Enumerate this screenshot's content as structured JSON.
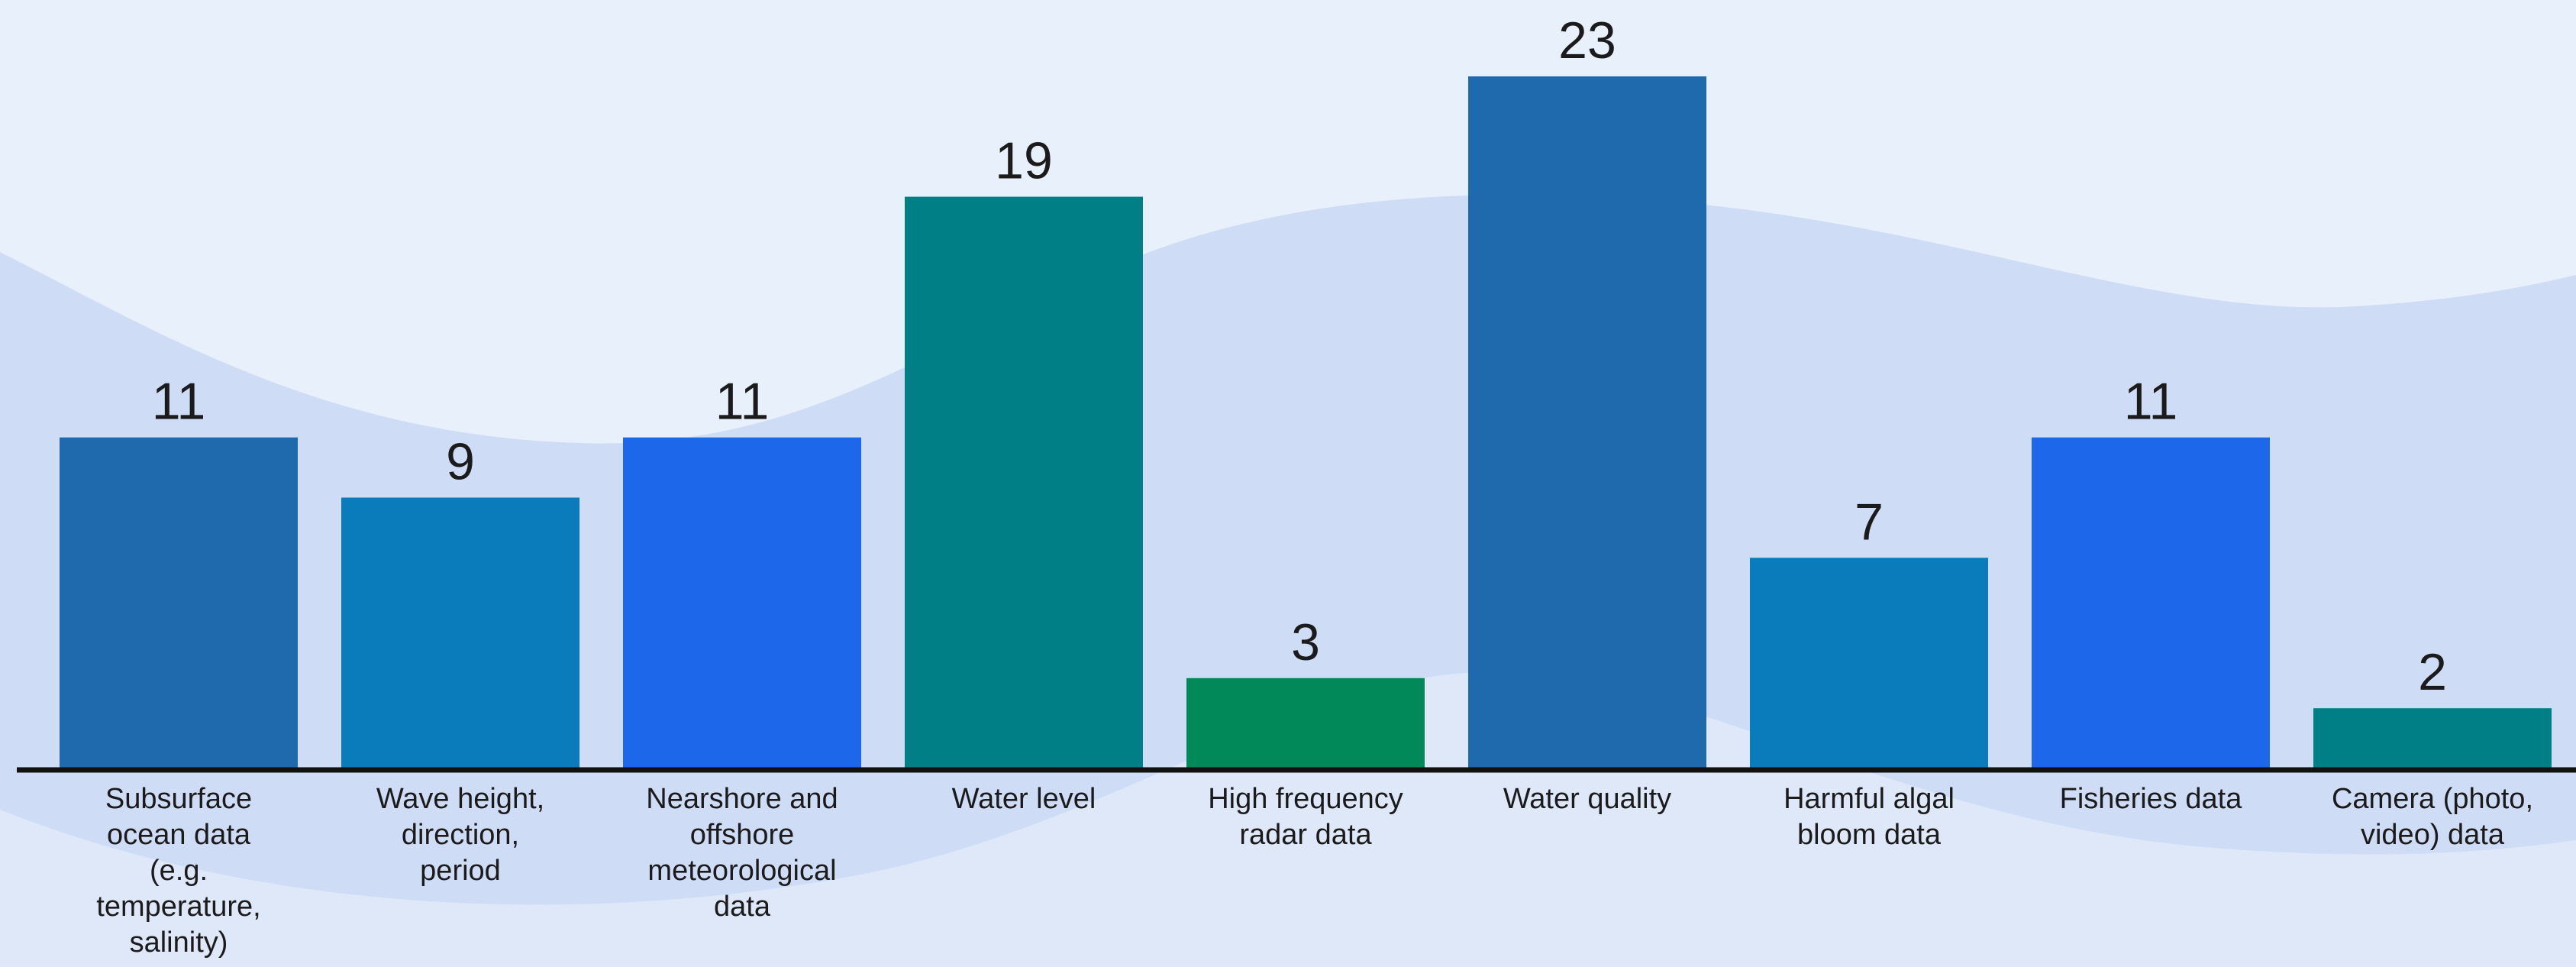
{
  "chart_data": {
    "type": "bar",
    "categories": [
      "Subsurface ocean data (e.g. temperature, salinity)",
      "Wave height, direction, period",
      "Nearshore and offshore meteorological data",
      "Water level",
      "High frequency radar data",
      "Water quality",
      "Harmful algal bloom data",
      "Fisheries data",
      "Camera (photo, video) data"
    ],
    "category_lines": [
      [
        "Subsurface",
        "ocean data",
        "(e.g.",
        "temperature,",
        "salinity)"
      ],
      [
        "Wave height,",
        "direction,",
        "period"
      ],
      [
        "Nearshore and",
        "offshore",
        "meteorological",
        "data"
      ],
      [
        "Water level"
      ],
      [
        "High frequency",
        "radar data"
      ],
      [
        "Water quality"
      ],
      [
        "Harmful algal",
        "bloom data"
      ],
      [
        "Fisheries data"
      ],
      [
        "Camera (photo,",
        "video) data"
      ]
    ],
    "values": [
      11,
      9,
      11,
      19,
      3,
      23,
      7,
      11,
      2
    ],
    "bar_colors": [
      "#1f69ad",
      "#0a7cbb",
      "#1c67ea",
      "#007f86",
      "#01895a",
      "#1f69ad",
      "#0a7cbb",
      "#1c67ea",
      "#007f86"
    ],
    "title": "",
    "xlabel": "",
    "ylabel": "",
    "ylim": [
      0,
      23
    ],
    "grid": false,
    "legend": "none"
  },
  "colors": {
    "background": "#e8f0fc",
    "wave": "#cfdcf6",
    "baseline": "#111111",
    "text": "#1b1b1b"
  }
}
